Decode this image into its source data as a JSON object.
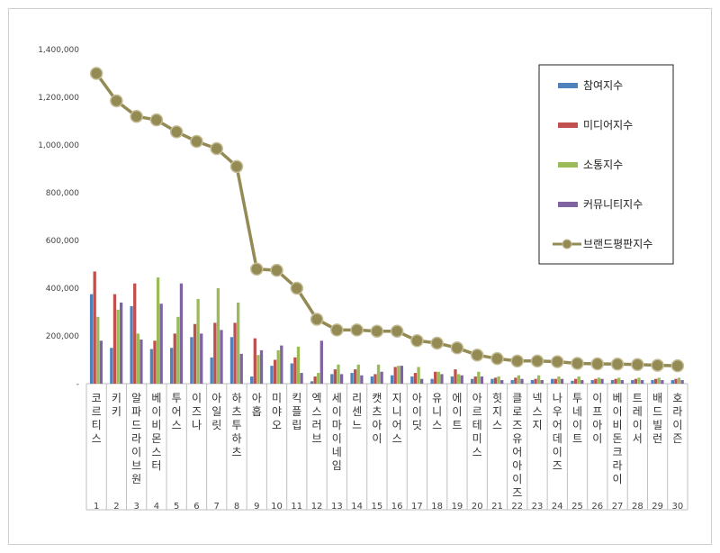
{
  "chart_data": {
    "type": "bar",
    "title": "",
    "xlabel": "",
    "ylabel": "",
    "ylim": [
      0,
      1400000
    ],
    "yticks": [
      "-",
      "200,000",
      "400,000",
      "600,000",
      "800,000",
      "1,000,000",
      "1,200,000",
      "1,400,000"
    ],
    "ytick_values": [
      0,
      200000,
      400000,
      600000,
      800000,
      1000000,
      1200000,
      1400000
    ],
    "legend_position": "top-right",
    "grid": false,
    "ranks": [
      "1",
      "2",
      "3",
      "4",
      "5",
      "6",
      "7",
      "8",
      "9",
      "10",
      "11",
      "12",
      "13",
      "14",
      "15",
      "16",
      "17",
      "18",
      "19",
      "20",
      "21",
      "22",
      "23",
      "24",
      "25",
      "26",
      "27",
      "28",
      "29",
      "30"
    ],
    "categories": [
      "코르티스",
      "키키",
      "알파드라이브원",
      "베이비몬스터",
      "투어스",
      "이즈나",
      "아일릿",
      "하츠투하츠",
      "아홉",
      "미야오",
      "킥플립",
      "엑스러브",
      "세이마이네임",
      "리센느",
      "캣츠아이",
      "지니어스",
      "아이딧",
      "유니스",
      "에이트",
      "아르테미스",
      "힛지스",
      "클로즈유어아이즈",
      "넥스지",
      "나우어데이즈",
      "투네이트",
      "이프아이",
      "베이비돈크라이",
      "트레이서",
      "배드빌런",
      "호라이즌"
    ],
    "series": [
      {
        "name": "참여지수",
        "kind": "bar",
        "color": "#4f81bd",
        "values": [
          375000,
          150000,
          325000,
          145000,
          150000,
          195000,
          110000,
          195000,
          30000,
          75000,
          85000,
          10000,
          40000,
          45000,
          30000,
          35000,
          30000,
          20000,
          30000,
          20000,
          20000,
          15000,
          15000,
          20000,
          12000,
          15000,
          15000,
          15000,
          15000,
          15000
        ]
      },
      {
        "name": "미디어지수",
        "kind": "bar",
        "color": "#c0504d",
        "values": [
          470000,
          375000,
          420000,
          180000,
          210000,
          250000,
          255000,
          255000,
          190000,
          100000,
          110000,
          30000,
          60000,
          60000,
          40000,
          70000,
          45000,
          50000,
          60000,
          30000,
          25000,
          25000,
          20000,
          20000,
          20000,
          20000,
          20000,
          20000,
          20000,
          20000
        ]
      },
      {
        "name": "소통지수",
        "kind": "bar",
        "color": "#9bbb59",
        "values": [
          280000,
          310000,
          210000,
          445000,
          280000,
          355000,
          400000,
          340000,
          120000,
          140000,
          155000,
          45000,
          80000,
          80000,
          80000,
          75000,
          70000,
          50000,
          40000,
          50000,
          30000,
          35000,
          35000,
          30000,
          30000,
          25000,
          25000,
          25000,
          25000,
          25000
        ]
      },
      {
        "name": "커뮤니티지수",
        "kind": "bar",
        "color": "#8064a2",
        "values": [
          180000,
          340000,
          185000,
          335000,
          420000,
          210000,
          225000,
          125000,
          140000,
          160000,
          45000,
          180000,
          40000,
          35000,
          50000,
          75000,
          20000,
          40000,
          35000,
          30000,
          15000,
          20000,
          15000,
          20000,
          15000,
          20000,
          15000,
          15000,
          15000,
          15000
        ]
      },
      {
        "name": "브랜드평판지수",
        "kind": "line",
        "color": "#948a54",
        "values": [
          1300000,
          1185000,
          1120000,
          1105000,
          1055000,
          1015000,
          985000,
          910000,
          480000,
          475000,
          400000,
          270000,
          225000,
          225000,
          220000,
          220000,
          180000,
          170000,
          150000,
          120000,
          105000,
          95000,
          95000,
          92000,
          85000,
          83000,
          82000,
          80000,
          77000,
          75000
        ]
      }
    ]
  }
}
